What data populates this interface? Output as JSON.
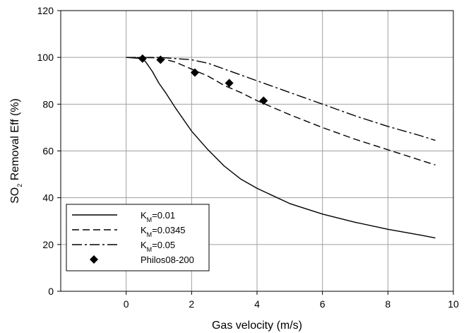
{
  "chart_data": {
    "type": "line",
    "xlabel": "Gas velocity (m/s)",
    "ylabel_parts": {
      "pre": "SO",
      "sub": "2",
      "post": " Removal Eff (%)"
    },
    "xlim": [
      -2,
      10
    ],
    "ylim": [
      0,
      120
    ],
    "x_ticks": [
      0,
      2,
      4,
      6,
      8,
      10
    ],
    "y_ticks": [
      0,
      20,
      40,
      60,
      80,
      100,
      120
    ],
    "grid": true,
    "legend_position": "bottom-left",
    "series": [
      {
        "name_parts": {
          "pre": "K",
          "sub": "M",
          "post": "=0.01"
        },
        "style": "solid",
        "color": "#000000",
        "x": [
          0.0,
          0.5,
          0.6,
          0.8,
          1.0,
          1.2,
          1.5,
          2.0,
          2.5,
          3.0,
          3.5,
          4.0,
          5.0,
          6.0,
          7.0,
          8.0,
          9.0,
          9.45
        ],
        "y": [
          100,
          99.5,
          98,
          94,
          89,
          85,
          78.5,
          68.5,
          60.5,
          53.5,
          48,
          44,
          37.5,
          33,
          29.5,
          26.5,
          24,
          22.8
        ]
      },
      {
        "name_parts": {
          "pre": "K",
          "sub": "M",
          "post": "=0.0345"
        },
        "style": "dashed",
        "color": "#000000",
        "x": [
          0.0,
          1.0,
          1.5,
          2.0,
          2.5,
          3.0,
          3.5,
          4.0,
          5.0,
          6.0,
          7.0,
          8.0,
          9.0,
          9.45
        ],
        "y": [
          100,
          99.8,
          98,
          95,
          92,
          88,
          85,
          81.5,
          75.5,
          70,
          65,
          60.5,
          56,
          54
        ]
      },
      {
        "name_parts": {
          "pre": "K",
          "sub": "M",
          "post": "=0.05"
        },
        "style": "dashdot",
        "color": "#000000",
        "x": [
          0.0,
          1.0,
          2.0,
          2.5,
          3.0,
          4.0,
          5.0,
          6.0,
          7.0,
          8.0,
          9.0,
          9.45
        ],
        "y": [
          100,
          100,
          99,
          97.5,
          95,
          90,
          85,
          80,
          75,
          70.5,
          66.5,
          64.5
        ]
      },
      {
        "name": "Philos08-200",
        "style": "markers",
        "marker": "diamond",
        "color": "#000000",
        "x": [
          0.5,
          1.05,
          2.1,
          3.15,
          4.2
        ],
        "y": [
          99.5,
          99,
          93.5,
          89,
          81.5
        ]
      }
    ]
  }
}
